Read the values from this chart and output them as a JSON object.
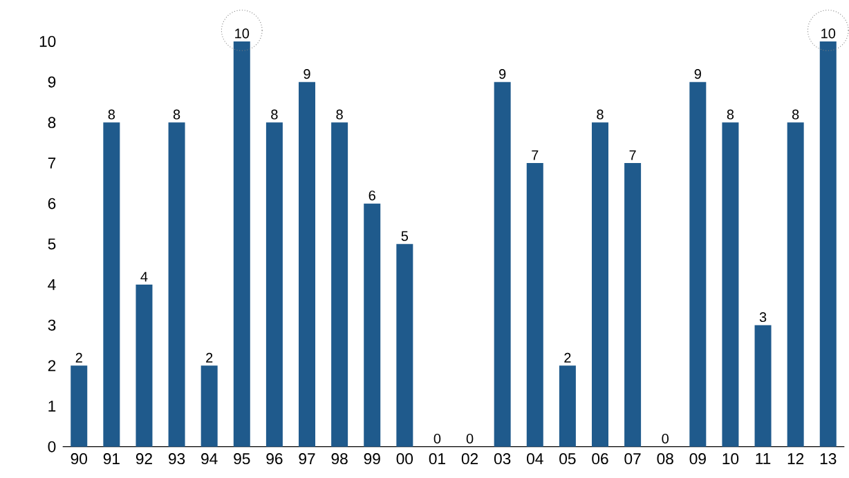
{
  "chart_data": {
    "type": "bar",
    "categories": [
      "90",
      "91",
      "92",
      "93",
      "94",
      "95",
      "96",
      "97",
      "98",
      "99",
      "00",
      "01",
      "02",
      "03",
      "04",
      "05",
      "06",
      "07",
      "08",
      "09",
      "10",
      "11",
      "12",
      "13"
    ],
    "values": [
      2,
      8,
      4,
      8,
      2,
      10,
      8,
      9,
      8,
      6,
      5,
      0,
      0,
      9,
      7,
      2,
      8,
      7,
      0,
      9,
      8,
      3,
      8,
      10
    ],
    "color": "#1f5a8c",
    "ylim": [
      0,
      10
    ],
    "yticks": [
      0,
      1,
      2,
      3,
      4,
      5,
      6,
      7,
      8,
      9,
      10
    ],
    "data_labels": true
  }
}
